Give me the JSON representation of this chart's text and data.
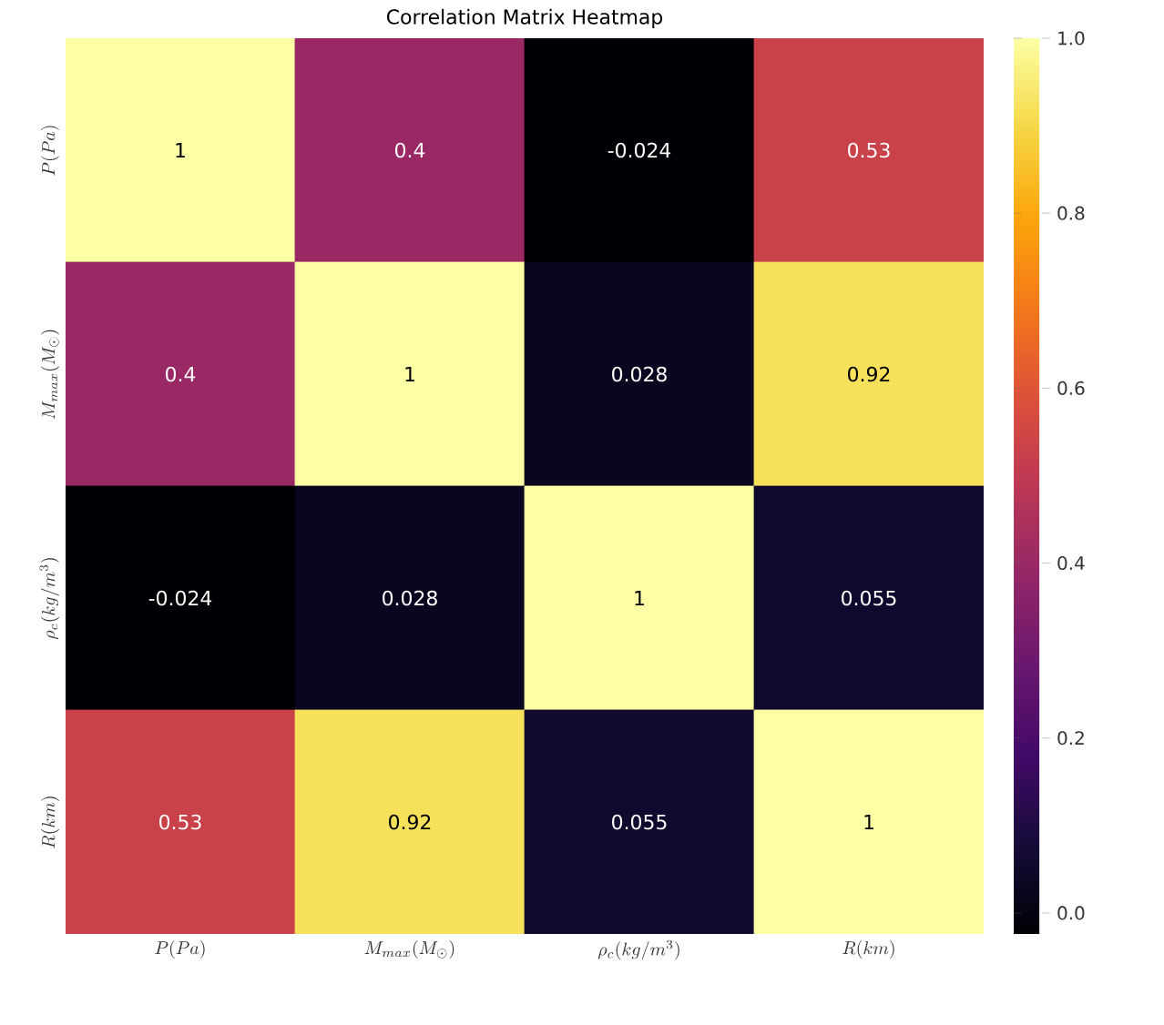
{
  "chart_data": {
    "type": "heatmap",
    "title": "Correlation Matrix Heatmap",
    "categories": [
      "P(Pa)",
      "M_{max}(M_\\odot)",
      "\\rho_c(kg/m^3)",
      "R(km)"
    ],
    "y_categories": [
      "P(Pa)",
      "M_{max}(M_\\odot)",
      "\\rho_c(kg/m^3)",
      "R(km)"
    ],
    "cells": [
      [
        1,
        0.4,
        -0.024,
        0.53
      ],
      [
        0.4,
        1,
        0.028,
        0.92
      ],
      [
        -0.024,
        0.028,
        1,
        0.055
      ],
      [
        0.53,
        0.92,
        0.055,
        1
      ]
    ],
    "data_labels": true,
    "clim": [
      -0.024,
      1
    ],
    "cticks": [
      {
        "value": 0,
        "label": "0.0"
      },
      {
        "value": 0.2,
        "label": "0.2"
      },
      {
        "value": 0.4,
        "label": "0.4"
      },
      {
        "value": 0.6,
        "label": "0.6"
      },
      {
        "value": 0.8,
        "label": "0.8"
      },
      {
        "value": 1,
        "label": "1.0"
      }
    ]
  }
}
